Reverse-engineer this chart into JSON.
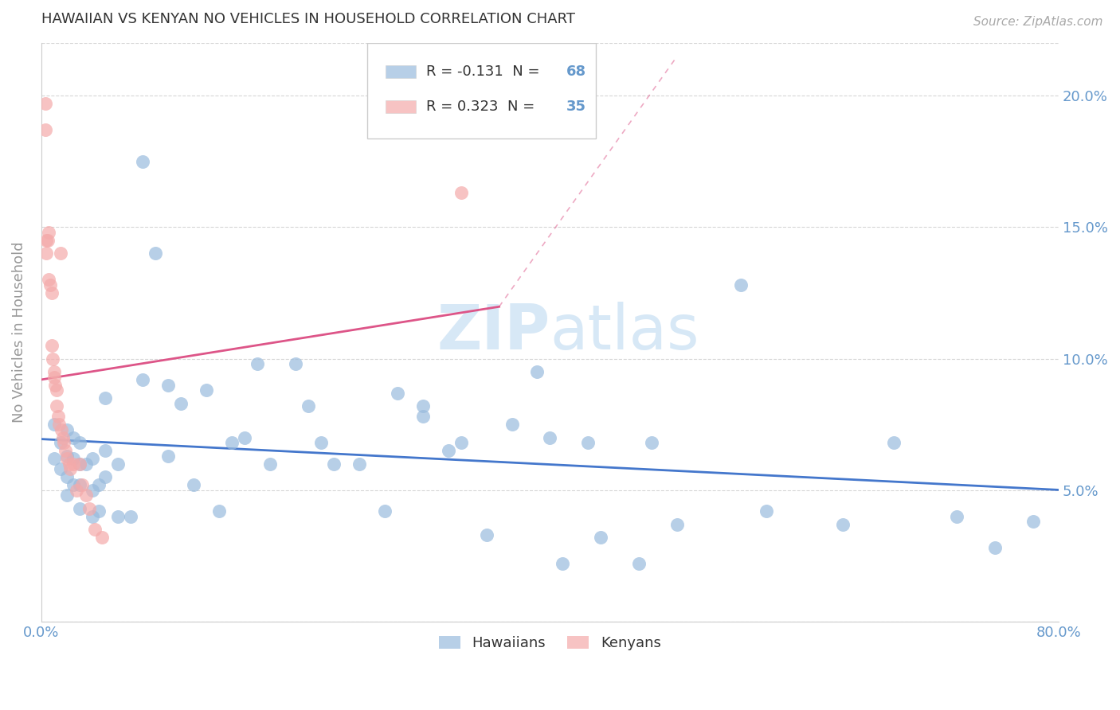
{
  "title": "HAWAIIAN VS KENYAN NO VEHICLES IN HOUSEHOLD CORRELATION CHART",
  "source": "Source: ZipAtlas.com",
  "ylabel": "No Vehicles in Household",
  "watermark": "ZIPatlas",
  "xlim": [
    0.0,
    0.8
  ],
  "ylim": [
    0.0,
    0.22
  ],
  "xticks": [
    0.0,
    0.1,
    0.2,
    0.3,
    0.4,
    0.5,
    0.6,
    0.7,
    0.8
  ],
  "xticklabels": [
    "0.0%",
    "",
    "",
    "",
    "",
    "",
    "",
    "",
    "80.0%"
  ],
  "yticks": [
    0.0,
    0.05,
    0.1,
    0.15,
    0.2
  ],
  "yticklabels_right": [
    "",
    "5.0%",
    "10.0%",
    "15.0%",
    "20.0%"
  ],
  "blue_color": "#99BBDD",
  "pink_color": "#F4AAAA",
  "blue_line_color": "#4477CC",
  "pink_line_color": "#DD5588",
  "tick_color": "#6699CC",
  "title_color": "#333333",
  "legend_R1": "R = -0.131",
  "legend_N1_label": "N = ",
  "legend_N1_val": "68",
  "legend_R2": "R = 0.323",
  "legend_N2_label": "N = ",
  "legend_N2_val": "35",
  "legend_label3": "Hawaiians",
  "legend_label4": "Kenyans",
  "hawaiian_x": [
    0.01,
    0.01,
    0.015,
    0.015,
    0.02,
    0.02,
    0.02,
    0.02,
    0.025,
    0.025,
    0.025,
    0.03,
    0.03,
    0.03,
    0.03,
    0.035,
    0.04,
    0.04,
    0.04,
    0.045,
    0.045,
    0.05,
    0.05,
    0.05,
    0.06,
    0.06,
    0.07,
    0.08,
    0.08,
    0.09,
    0.1,
    0.1,
    0.11,
    0.12,
    0.13,
    0.14,
    0.15,
    0.16,
    0.17,
    0.18,
    0.2,
    0.21,
    0.22,
    0.23,
    0.25,
    0.27,
    0.28,
    0.3,
    0.3,
    0.32,
    0.33,
    0.35,
    0.37,
    0.39,
    0.4,
    0.41,
    0.43,
    0.44,
    0.47,
    0.48,
    0.5,
    0.55,
    0.57,
    0.63,
    0.67,
    0.72,
    0.75,
    0.78
  ],
  "hawaiian_y": [
    0.075,
    0.062,
    0.068,
    0.058,
    0.073,
    0.063,
    0.055,
    0.048,
    0.07,
    0.062,
    0.052,
    0.068,
    0.06,
    0.052,
    0.043,
    0.06,
    0.062,
    0.05,
    0.04,
    0.052,
    0.042,
    0.085,
    0.065,
    0.055,
    0.06,
    0.04,
    0.04,
    0.175,
    0.092,
    0.14,
    0.063,
    0.09,
    0.083,
    0.052,
    0.088,
    0.042,
    0.068,
    0.07,
    0.098,
    0.06,
    0.098,
    0.082,
    0.068,
    0.06,
    0.06,
    0.042,
    0.087,
    0.082,
    0.078,
    0.065,
    0.068,
    0.033,
    0.075,
    0.095,
    0.07,
    0.022,
    0.068,
    0.032,
    0.022,
    0.068,
    0.037,
    0.128,
    0.042,
    0.037,
    0.068,
    0.04,
    0.028,
    0.038
  ],
  "kenyan_x": [
    0.003,
    0.003,
    0.004,
    0.004,
    0.005,
    0.006,
    0.006,
    0.007,
    0.008,
    0.008,
    0.009,
    0.01,
    0.01,
    0.011,
    0.012,
    0.012,
    0.013,
    0.014,
    0.015,
    0.016,
    0.017,
    0.018,
    0.019,
    0.02,
    0.022,
    0.023,
    0.025,
    0.028,
    0.03,
    0.032,
    0.035,
    0.038,
    0.042,
    0.048,
    0.33
  ],
  "kenyan_y": [
    0.197,
    0.187,
    0.145,
    0.14,
    0.145,
    0.148,
    0.13,
    0.128,
    0.125,
    0.105,
    0.1,
    0.095,
    0.093,
    0.09,
    0.088,
    0.082,
    0.078,
    0.075,
    0.14,
    0.073,
    0.07,
    0.068,
    0.065,
    0.062,
    0.06,
    0.058,
    0.06,
    0.05,
    0.06,
    0.052,
    0.048,
    0.043,
    0.035,
    0.032,
    0.163
  ],
  "kenyan_line_x0": 0.0,
  "kenyan_line_x1": 0.36,
  "hawaiian_line_x0": 0.0,
  "hawaiian_line_x1": 0.8
}
